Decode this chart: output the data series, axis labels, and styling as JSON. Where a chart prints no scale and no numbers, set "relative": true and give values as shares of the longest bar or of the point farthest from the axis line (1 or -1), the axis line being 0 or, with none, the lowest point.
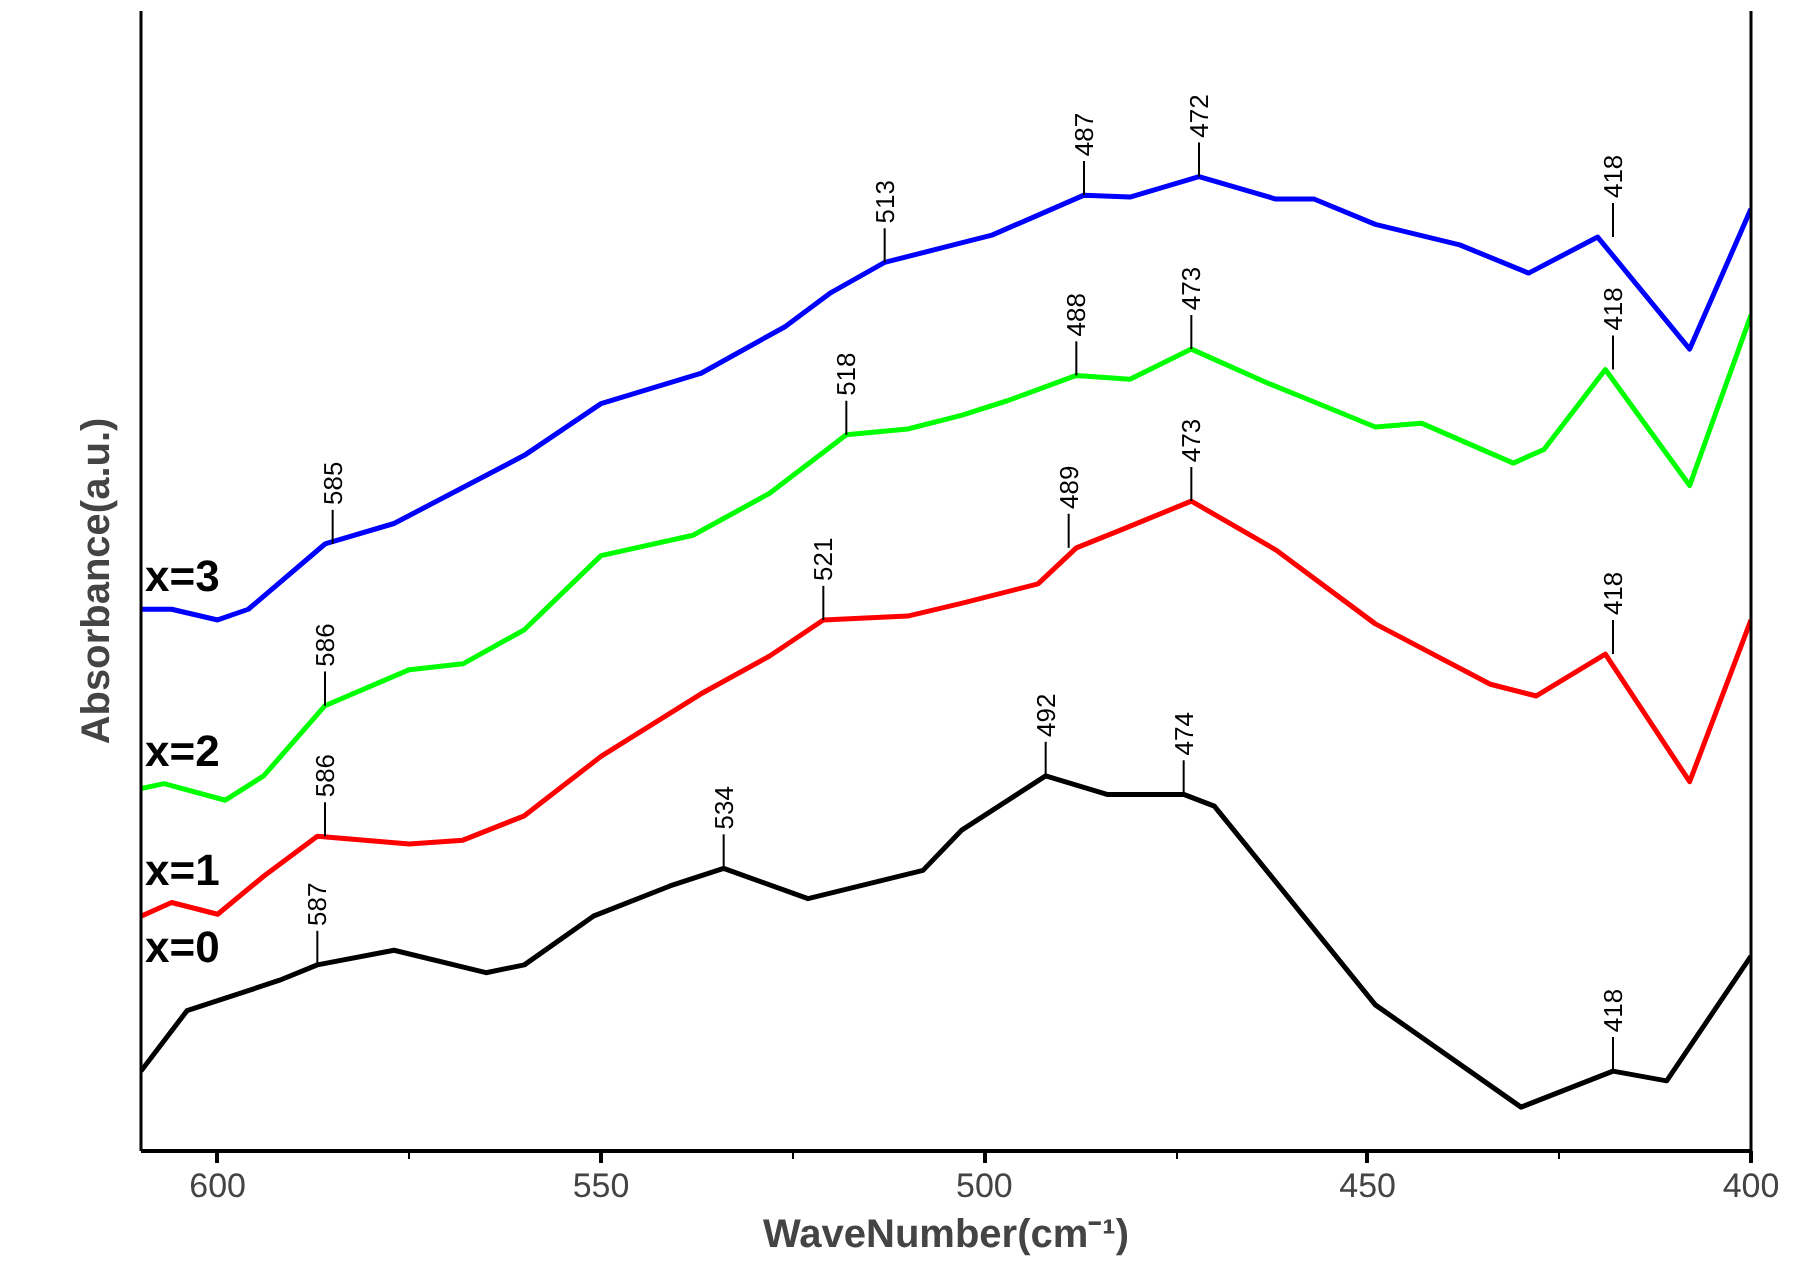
{
  "chart_data": {
    "type": "line",
    "relative": true,
    "xlabel": "WaveNumber(cm⁻¹)",
    "ylabel": "Absorbance(a.u.)",
    "xlim": [
      610,
      400
    ],
    "xticks": [
      600,
      550,
      500,
      450,
      400
    ],
    "grid": false,
    "line_style": "solid",
    "series": [
      {
        "name": "x=0",
        "color": "#000000",
        "x": [
          610,
          604,
          592,
          587,
          577,
          565,
          560,
          551,
          541,
          534,
          523,
          508,
          503,
          492,
          484,
          474,
          470,
          449,
          430,
          418,
          411,
          400
        ],
        "values": [
          0.082,
          0.144,
          0.175,
          0.191,
          0.206,
          0.183,
          0.191,
          0.241,
          0.272,
          0.29,
          0.259,
          0.288,
          0.329,
          0.385,
          0.366,
          0.366,
          0.354,
          0.15,
          0.045,
          0.082,
          0.072,
          0.2
        ]
      },
      {
        "name": "x=1",
        "color": "#ff0000",
        "x": [
          610,
          606,
          600,
          594,
          587,
          575,
          568,
          560,
          550,
          537,
          528,
          521,
          510,
          503,
          493,
          488,
          482,
          473,
          462,
          449,
          434,
          428,
          419,
          408,
          400
        ],
        "values": [
          0.241,
          0.255,
          0.243,
          0.282,
          0.323,
          0.315,
          0.319,
          0.344,
          0.405,
          0.469,
          0.508,
          0.545,
          0.549,
          0.562,
          0.582,
          0.619,
          0.638,
          0.667,
          0.617,
          0.541,
          0.479,
          0.467,
          0.51,
          0.379,
          0.545
        ]
      },
      {
        "name": "x=2",
        "color": "#00ff00",
        "x": [
          610,
          607,
          599,
          594,
          586,
          575,
          568,
          560,
          550,
          538,
          528,
          518,
          510,
          503,
          497,
          488,
          481,
          473,
          463,
          458,
          449,
          443,
          431,
          427,
          419,
          408,
          400
        ],
        "values": [
          0.372,
          0.377,
          0.36,
          0.385,
          0.457,
          0.494,
          0.5,
          0.535,
          0.611,
          0.632,
          0.675,
          0.735,
          0.741,
          0.755,
          0.77,
          0.796,
          0.792,
          0.823,
          0.788,
          0.772,
          0.743,
          0.747,
          0.706,
          0.72,
          0.802,
          0.683,
          0.858
        ]
      },
      {
        "name": "x=3",
        "color": "#0000ff",
        "x": [
          610,
          606,
          600,
          596,
          586,
          577,
          560,
          550,
          537,
          526,
          520,
          513,
          503,
          499,
          487,
          481,
          472,
          462,
          457,
          449,
          438,
          429,
          420,
          408,
          400
        ],
        "values": [
          0.556,
          0.556,
          0.545,
          0.556,
          0.623,
          0.644,
          0.714,
          0.767,
          0.798,
          0.846,
          0.881,
          0.912,
          0.932,
          0.94,
          0.981,
          0.979,
          1.0,
          0.977,
          0.977,
          0.951,
          0.93,
          0.901,
          0.938,
          0.823,
          0.967
        ]
      }
    ],
    "annotations": [
      {
        "text": "587",
        "x": 587,
        "y": 0.191
      },
      {
        "text": "534",
        "x": 534,
        "y": 0.29
      },
      {
        "text": "492",
        "x": 492,
        "y": 0.385
      },
      {
        "text": "474",
        "x": 474,
        "y": 0.366
      },
      {
        "text": "418",
        "x": 418,
        "y": 0.082
      },
      {
        "text": "586",
        "x": 586,
        "y": 0.323
      },
      {
        "text": "521",
        "x": 521,
        "y": 0.545
      },
      {
        "text": "489",
        "x": 489,
        "y": 0.619
      },
      {
        "text": "473",
        "x": 473,
        "y": 0.667
      },
      {
        "text": "418",
        "x": 418,
        "y": 0.51
      },
      {
        "text": "586",
        "x": 586,
        "y": 0.457
      },
      {
        "text": "518",
        "x": 518,
        "y": 0.735
      },
      {
        "text": "488",
        "x": 488,
        "y": 0.796
      },
      {
        "text": "473",
        "x": 473,
        "y": 0.823
      },
      {
        "text": "418",
        "x": 418,
        "y": 0.802
      },
      {
        "text": "585",
        "x": 585,
        "y": 0.623
      },
      {
        "text": "513",
        "x": 513,
        "y": 0.912
      },
      {
        "text": "487",
        "x": 487,
        "y": 0.981
      },
      {
        "text": "472",
        "x": 472,
        "y": 1.0
      },
      {
        "text": "418",
        "x": 418,
        "y": 0.938
      }
    ]
  }
}
